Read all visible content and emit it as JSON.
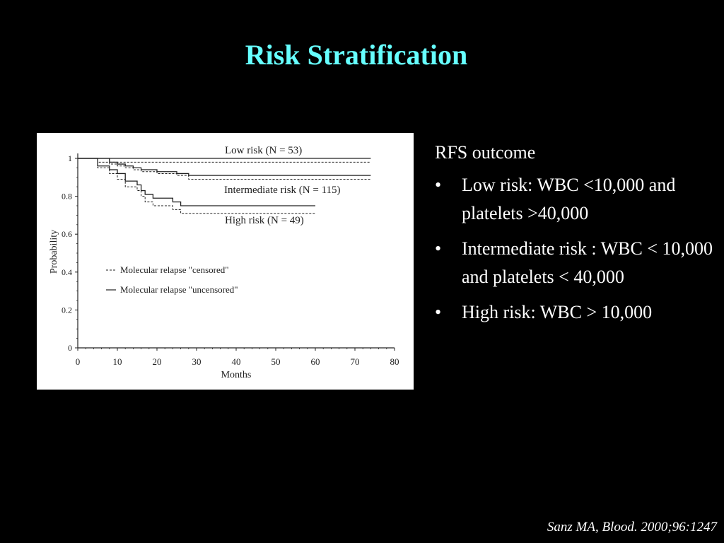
{
  "slide": {
    "title": "Risk Stratification",
    "citation": "Sanz MA, Blood. 2000;96:1247",
    "title_color": "#66ffff",
    "background": "#000000"
  },
  "panel": {
    "heading": "RFS outcome",
    "bullet_symbol": "•",
    "bullets": [
      "Low risk: WBC <10,000 and platelets >40,000",
      "Intermediate risk : WBC < 10,000 and platelets < 40,000",
      "High risk: WBC > 10,000"
    ]
  },
  "chart_data": {
    "type": "line",
    "title": "",
    "xlabel": "Months",
    "ylabel": "Probability",
    "xlim": [
      0,
      80
    ],
    "ylim": [
      0,
      1
    ],
    "xticks": [
      0,
      10,
      20,
      30,
      40,
      50,
      60,
      70,
      80
    ],
    "yticks": [
      0,
      0.2,
      0.4,
      0.6,
      0.8,
      1
    ],
    "ytick_labels": [
      "0",
      "0.2",
      "0.4",
      "0.6",
      "0.8",
      "1"
    ],
    "grid": false,
    "legend": {
      "position": "left",
      "entries": [
        {
          "label": "Molecular relapse \"censored\"",
          "style": "dashed"
        },
        {
          "label": "Molecular relapse \"uncensored\"",
          "style": "solid"
        }
      ]
    },
    "annotations": [
      {
        "text": "Low risk (N = 53)",
        "series": "low"
      },
      {
        "text": "Intermediate risk (N = 115)",
        "series": "intermediate"
      },
      {
        "text": "High risk (N = 49)",
        "series": "high"
      }
    ],
    "series": [
      {
        "key": "low",
        "style": "solid",
        "x": [
          0,
          5,
          74
        ],
        "y": [
          1,
          1,
          1
        ]
      },
      {
        "key": "low",
        "style": "dashed",
        "x": [
          0,
          5,
          74
        ],
        "y": [
          1,
          0.98,
          0.98
        ]
      },
      {
        "key": "intermediate",
        "style": "solid",
        "x": [
          0,
          8,
          10,
          12,
          14,
          16,
          20,
          25,
          28,
          60,
          74
        ],
        "y": [
          1,
          0.98,
          0.97,
          0.96,
          0.95,
          0.94,
          0.93,
          0.92,
          0.91,
          0.91,
          0.91
        ]
      },
      {
        "key": "intermediate",
        "style": "dashed",
        "x": [
          0,
          8,
          10,
          12,
          14,
          16,
          20,
          25,
          28,
          60,
          74
        ],
        "y": [
          1,
          0.97,
          0.96,
          0.95,
          0.94,
          0.93,
          0.92,
          0.91,
          0.89,
          0.89,
          0.89
        ]
      },
      {
        "key": "high",
        "style": "solid",
        "x": [
          0,
          5,
          8,
          10,
          12,
          15,
          16,
          17,
          19,
          24,
          26,
          60
        ],
        "y": [
          1,
          0.96,
          0.94,
          0.92,
          0.88,
          0.86,
          0.83,
          0.81,
          0.79,
          0.77,
          0.75,
          0.75
        ]
      },
      {
        "key": "high",
        "style": "dashed",
        "x": [
          0,
          5,
          8,
          10,
          12,
          15,
          16,
          17,
          19,
          24,
          26,
          60
        ],
        "y": [
          1,
          0.95,
          0.92,
          0.89,
          0.85,
          0.83,
          0.8,
          0.77,
          0.75,
          0.73,
          0.71,
          0.71
        ]
      }
    ]
  }
}
